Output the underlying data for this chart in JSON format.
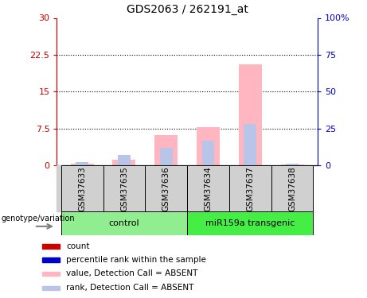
{
  "title": "GDS2063 / 262191_at",
  "samples": [
    "GSM37633",
    "GSM37635",
    "GSM37636",
    "GSM37634",
    "GSM37637",
    "GSM37638"
  ],
  "value_absent": [
    0.3,
    1.2,
    6.2,
    7.8,
    20.5,
    0.15
  ],
  "rank_absent": [
    0.7,
    2.2,
    3.5,
    5.0,
    8.5,
    0.4
  ],
  "ylim_left": [
    0,
    30
  ],
  "ylim_right": [
    0,
    100
  ],
  "yticks_left": [
    0,
    7.5,
    15,
    22.5,
    30
  ],
  "yticks_right": [
    0,
    25,
    50,
    75,
    100
  ],
  "ytick_labels_left": [
    "0",
    "7.5",
    "15",
    "22.5",
    "30"
  ],
  "ytick_labels_right": [
    "0",
    "25",
    "50",
    "75",
    "100%"
  ],
  "color_value_absent": "#ffb6c1",
  "color_rank_absent": "#b8c4e8",
  "color_count": "#cc0000",
  "color_rank_present": "#0000cc",
  "bar_width": 0.55,
  "legend_items": [
    {
      "label": "count",
      "color": "#cc0000"
    },
    {
      "label": "percentile rank within the sample",
      "color": "#0000cc"
    },
    {
      "label": "value, Detection Call = ABSENT",
      "color": "#ffb6c1"
    },
    {
      "label": "rank, Detection Call = ABSENT",
      "color": "#b8c4e8"
    }
  ],
  "genotype_label": "genotype/variation",
  "left_axis_color": "#cc0000",
  "right_axis_color": "#0000cc",
  "control_color": "#90ee90",
  "transgenic_color": "#44ee44",
  "sample_box_color": "#d0d0d0"
}
